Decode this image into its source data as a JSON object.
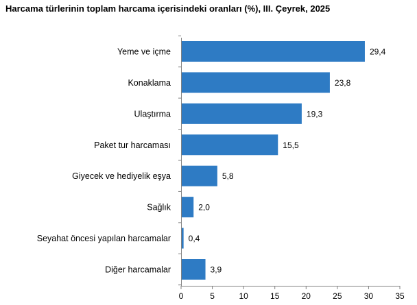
{
  "chart_data": {
    "type": "bar",
    "orientation": "horizontal",
    "title": "Harcama türlerinin toplam harcama içerisindeki oranları (%), III. Çeyrek, 2025",
    "categories": [
      "Yeme ve içme",
      "Konaklama",
      "Ulaştırma",
      "Paket tur harcaması",
      "Giyecek ve hediyelik eşya",
      "Sağlık",
      "Seyahat öncesi yapılan harcamalar",
      "Diğer harcamalar"
    ],
    "values": [
      29.4,
      23.8,
      19.3,
      15.5,
      5.8,
      2.0,
      0.4,
      3.9
    ],
    "value_labels": [
      "29,4",
      "23,8",
      "19,3",
      "15,5",
      "5,8",
      "2,0",
      "0,4",
      "3,9"
    ],
    "xlim": [
      0,
      35
    ],
    "xticks": [
      0,
      5,
      10,
      15,
      20,
      25,
      30,
      35
    ],
    "xtick_labels": [
      "0",
      "5",
      "10",
      "15",
      "20",
      "25",
      "30",
      "35"
    ],
    "grid": false,
    "legend": "none",
    "bar_color": "#2e7bc4"
  }
}
